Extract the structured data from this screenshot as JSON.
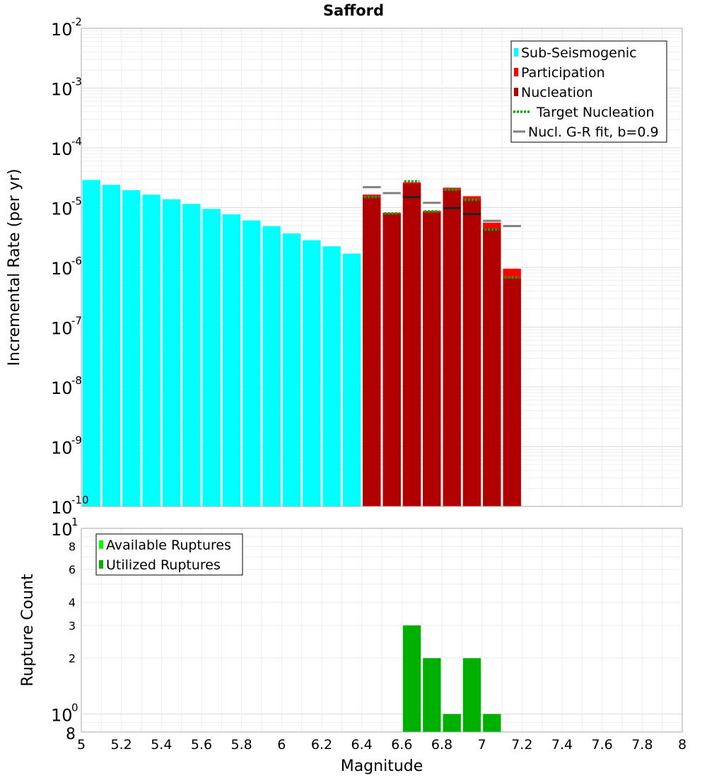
{
  "chart_data": [
    {
      "type": "bar",
      "title": "Safford",
      "xlabel": "",
      "ylabel": "Incremental Rate (per yr)",
      "xlim": [
        5,
        8
      ],
      "ylim": [
        1e-10,
        0.01
      ],
      "yscale": "log",
      "y_ticks": [
        {
          "base": "10",
          "exp": "-10"
        },
        {
          "base": "10",
          "exp": "-9"
        },
        {
          "base": "10",
          "exp": "-8"
        },
        {
          "base": "10",
          "exp": "-7"
        },
        {
          "base": "10",
          "exp": "-6"
        },
        {
          "base": "10",
          "exp": "-5"
        },
        {
          "base": "10",
          "exp": "-4"
        },
        {
          "base": "10",
          "exp": "-3"
        },
        {
          "base": "10",
          "exp": "-2"
        }
      ],
      "grid": true,
      "legend_position": "top-right",
      "legend": [
        {
          "label": "Sub-Seismogenic",
          "color": "#00ffff",
          "style": "bar"
        },
        {
          "label": "Participation",
          "color": "#ff0000",
          "style": "bar"
        },
        {
          "label": "Nucleation",
          "color": "#b00000",
          "style": "bar"
        },
        {
          "label": "Target Nucleation",
          "color": "#00b000",
          "style": "dotted"
        },
        {
          "label": "Nucl. G-R fit, b=0.9",
          "color": "#808080",
          "style": "line"
        }
      ],
      "series": [
        {
          "key": "sub",
          "color": "#00ffff",
          "x": [
            5.05,
            5.15,
            5.25,
            5.35,
            5.45,
            5.55,
            5.65,
            5.75,
            5.85,
            5.95,
            6.05,
            6.15,
            6.25,
            6.35
          ],
          "values": [
            2.9e-05,
            2.4e-05,
            1.95e-05,
            1.65e-05,
            1.38e-05,
            1.15e-05,
            9.5e-06,
            7.7e-06,
            6.1e-06,
            4.9e-06,
            3.7e-06,
            2.85e-06,
            2.25e-06,
            1.7e-06
          ]
        },
        {
          "key": "participation",
          "color": "#ff0000",
          "x": [
            6.45,
            6.55,
            6.65,
            6.75,
            6.85,
            6.95,
            7.05,
            7.15
          ],
          "values": [
            1.65e-05,
            8.2e-06,
            2.65e-05,
            8.8e-06,
            2.15e-05,
            1.55e-05,
            5.6e-06,
            9.5e-07
          ]
        },
        {
          "key": "nucleation",
          "color": "#b00000",
          "x": [
            6.45,
            6.55,
            6.65,
            6.75,
            6.85,
            6.95,
            7.05,
            7.15
          ],
          "values": [
            1.5e-05,
            7.8e-06,
            2.5e-05,
            8.2e-06,
            1.95e-05,
            1.35e-05,
            4.5e-06,
            6.6e-07
          ]
        },
        {
          "key": "target",
          "color": "#00b000",
          "x": [
            6.45,
            6.55,
            6.65,
            6.75,
            6.85,
            6.95,
            7.05,
            7.15
          ],
          "values": [
            1.5e-05,
            8e-06,
            2.75e-05,
            8.6e-06,
            2e-05,
            1.35e-05,
            4.3e-06,
            6.8e-07
          ]
        },
        {
          "key": "grfit",
          "color": "#808080",
          "x": [
            6.45,
            6.55,
            6.65,
            6.75,
            6.85,
            6.95,
            7.05,
            7.15
          ],
          "values": [
            2.2e-05,
            1.75e-05,
            1.5e-05,
            1.2e-05,
            9.8e-06,
            7.8e-06,
            6e-06,
            4.9e-06
          ]
        }
      ]
    },
    {
      "type": "bar",
      "title": "",
      "xlabel": "Magnitude",
      "ylabel": "Rupture Count",
      "xlim": [
        5,
        8
      ],
      "x_ticks": [
        "5",
        "5.2",
        "5.4",
        "5.6",
        "5.8",
        "6",
        "6.2",
        "6.4",
        "6.6",
        "6.8",
        "7",
        "7.2",
        "7.4",
        "7.6",
        "7.8",
        "8"
      ],
      "ylim": [
        0.8,
        10
      ],
      "yscale": "log",
      "y_ticks_minor": [
        {
          "value": 2,
          "label": "2"
        },
        {
          "value": 3,
          "label": "3"
        },
        {
          "value": 4,
          "label": "4"
        },
        {
          "value": 6,
          "label": "6"
        },
        {
          "value": 8,
          "label": "8"
        }
      ],
      "y_ticks_major": [
        {
          "value": 1,
          "base": "10",
          "exp": "0"
        },
        {
          "value": 10,
          "base": "10",
          "exp": "1"
        }
      ],
      "y_bottom_label": "8",
      "grid": true,
      "legend_position": "top-left",
      "legend": [
        {
          "label": "Available Ruptures",
          "color": "#00ff00"
        },
        {
          "label": "Utilized Ruptures",
          "color": "#00b000"
        }
      ],
      "series": [
        {
          "key": "utilized",
          "color": "#00b000",
          "x": [
            6.65,
            6.75,
            6.85,
            6.95,
            7.05
          ],
          "values": [
            3,
            2,
            1,
            2,
            1
          ]
        }
      ]
    }
  ]
}
